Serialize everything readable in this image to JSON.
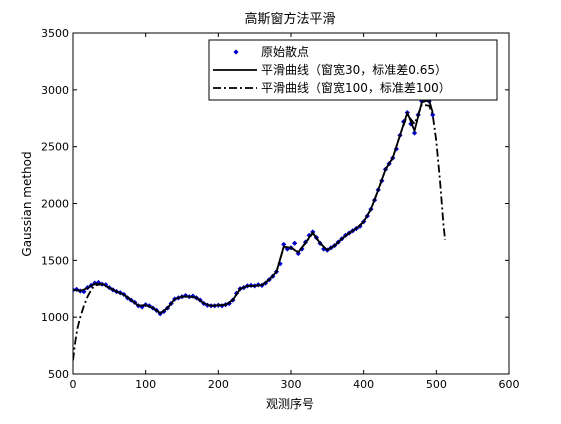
{
  "chart_data": {
    "type": "line",
    "title": "高斯窗方法平滑",
    "xlabel": "观测序号",
    "ylabel": "Gaussian method",
    "xlim": [
      0,
      600
    ],
    "ylim": [
      500,
      3500
    ],
    "x_ticks": [
      0,
      100,
      200,
      300,
      400,
      500,
      600
    ],
    "y_ticks": [
      500,
      1000,
      1500,
      2000,
      2500,
      3000,
      3500
    ],
    "grid": false,
    "legend": "top-right",
    "series": [
      {
        "name": "原始散点",
        "style": "scatter",
        "color": "#0000cc",
        "points": [
          [
            0,
            1240
          ],
          [
            5,
            1245
          ],
          [
            10,
            1230
          ],
          [
            15,
            1225
          ],
          [
            20,
            1260
          ],
          [
            25,
            1280
          ],
          [
            30,
            1300
          ],
          [
            35,
            1305
          ],
          [
            40,
            1290
          ],
          [
            45,
            1285
          ],
          [
            50,
            1260
          ],
          [
            55,
            1240
          ],
          [
            60,
            1225
          ],
          [
            65,
            1215
          ],
          [
            70,
            1200
          ],
          [
            75,
            1170
          ],
          [
            80,
            1150
          ],
          [
            85,
            1130
          ],
          [
            90,
            1100
          ],
          [
            95,
            1090
          ],
          [
            100,
            1110
          ],
          [
            105,
            1100
          ],
          [
            110,
            1080
          ],
          [
            115,
            1060
          ],
          [
            120,
            1030
          ],
          [
            125,
            1050
          ],
          [
            130,
            1080
          ],
          [
            135,
            1120
          ],
          [
            140,
            1160
          ],
          [
            145,
            1170
          ],
          [
            150,
            1180
          ],
          [
            155,
            1190
          ],
          [
            160,
            1180
          ],
          [
            165,
            1185
          ],
          [
            170,
            1170
          ],
          [
            175,
            1150
          ],
          [
            180,
            1120
          ],
          [
            185,
            1105
          ],
          [
            190,
            1100
          ],
          [
            195,
            1100
          ],
          [
            200,
            1105
          ],
          [
            205,
            1100
          ],
          [
            210,
            1110
          ],
          [
            215,
            1120
          ],
          [
            220,
            1150
          ],
          [
            225,
            1210
          ],
          [
            230,
            1250
          ],
          [
            235,
            1260
          ],
          [
            240,
            1275
          ],
          [
            245,
            1280
          ],
          [
            250,
            1275
          ],
          [
            255,
            1285
          ],
          [
            260,
            1280
          ],
          [
            265,
            1300
          ],
          [
            270,
            1330
          ],
          [
            275,
            1360
          ],
          [
            280,
            1400
          ],
          [
            285,
            1470
          ],
          [
            290,
            1640
          ],
          [
            295,
            1600
          ],
          [
            300,
            1610
          ],
          [
            305,
            1650
          ],
          [
            310,
            1560
          ],
          [
            315,
            1600
          ],
          [
            320,
            1660
          ],
          [
            325,
            1720
          ],
          [
            330,
            1750
          ],
          [
            335,
            1700
          ],
          [
            340,
            1650
          ],
          [
            345,
            1600
          ],
          [
            350,
            1590
          ],
          [
            355,
            1610
          ],
          [
            360,
            1630
          ],
          [
            365,
            1660
          ],
          [
            370,
            1690
          ],
          [
            375,
            1720
          ],
          [
            380,
            1740
          ],
          [
            385,
            1760
          ],
          [
            390,
            1780
          ],
          [
            395,
            1800
          ],
          [
            400,
            1840
          ],
          [
            405,
            1890
          ],
          [
            410,
            1950
          ],
          [
            415,
            2030
          ],
          [
            420,
            2120
          ],
          [
            425,
            2200
          ],
          [
            430,
            2300
          ],
          [
            435,
            2350
          ],
          [
            440,
            2400
          ],
          [
            445,
            2480
          ],
          [
            450,
            2600
          ],
          [
            455,
            2720
          ],
          [
            460,
            2800
          ],
          [
            465,
            2700
          ],
          [
            470,
            2620
          ],
          [
            475,
            2780
          ],
          [
            480,
            2900
          ],
          [
            485,
            2950
          ],
          [
            490,
            2900
          ],
          [
            495,
            2780
          ]
        ]
      },
      {
        "name": "平滑曲线（窗宽30，标准差0.65）",
        "style": "solid",
        "color": "#000000",
        "points": [
          [
            0,
            1240
          ],
          [
            10,
            1232
          ],
          [
            20,
            1255
          ],
          [
            30,
            1295
          ],
          [
            40,
            1292
          ],
          [
            50,
            1258
          ],
          [
            60,
            1225
          ],
          [
            70,
            1198
          ],
          [
            80,
            1150
          ],
          [
            90,
            1102
          ],
          [
            100,
            1105
          ],
          [
            110,
            1082
          ],
          [
            120,
            1035
          ],
          [
            130,
            1080
          ],
          [
            140,
            1158
          ],
          [
            150,
            1180
          ],
          [
            160,
            1182
          ],
          [
            170,
            1170
          ],
          [
            180,
            1122
          ],
          [
            190,
            1100
          ],
          [
            200,
            1104
          ],
          [
            210,
            1110
          ],
          [
            220,
            1152
          ],
          [
            230,
            1248
          ],
          [
            240,
            1274
          ],
          [
            250,
            1276
          ],
          [
            260,
            1282
          ],
          [
            270,
            1330
          ],
          [
            280,
            1400
          ],
          [
            290,
            1620
          ],
          [
            300,
            1610
          ],
          [
            310,
            1570
          ],
          [
            320,
            1655
          ],
          [
            330,
            1745
          ],
          [
            340,
            1650
          ],
          [
            350,
            1590
          ],
          [
            360,
            1630
          ],
          [
            370,
            1690
          ],
          [
            380,
            1740
          ],
          [
            390,
            1780
          ],
          [
            400,
            1840
          ],
          [
            410,
            1950
          ],
          [
            420,
            2120
          ],
          [
            430,
            2300
          ],
          [
            440,
            2400
          ],
          [
            450,
            2600
          ],
          [
            460,
            2800
          ],
          [
            470,
            2640
          ],
          [
            480,
            2890
          ],
          [
            490,
            2910
          ],
          [
            495,
            2800
          ]
        ]
      },
      {
        "name": "平滑曲线（窗宽100，标准差100）",
        "style": "dash-dot",
        "color": "#000000",
        "points": [
          [
            0,
            620
          ],
          [
            3,
            780
          ],
          [
            6,
            900
          ],
          [
            10,
            1000
          ],
          [
            15,
            1100
          ],
          [
            20,
            1180
          ],
          [
            25,
            1240
          ],
          [
            30,
            1280
          ],
          [
            40,
            1290
          ],
          [
            50,
            1258
          ],
          [
            60,
            1225
          ],
          [
            70,
            1198
          ],
          [
            80,
            1150
          ],
          [
            90,
            1102
          ],
          [
            100,
            1105
          ],
          [
            110,
            1082
          ],
          [
            120,
            1035
          ],
          [
            130,
            1080
          ],
          [
            140,
            1158
          ],
          [
            150,
            1180
          ],
          [
            160,
            1182
          ],
          [
            170,
            1170
          ],
          [
            180,
            1122
          ],
          [
            190,
            1100
          ],
          [
            200,
            1104
          ],
          [
            210,
            1110
          ],
          [
            220,
            1152
          ],
          [
            230,
            1248
          ],
          [
            240,
            1274
          ],
          [
            250,
            1276
          ],
          [
            260,
            1282
          ],
          [
            270,
            1330
          ],
          [
            280,
            1400
          ],
          [
            290,
            1615
          ],
          [
            300,
            1610
          ],
          [
            310,
            1575
          ],
          [
            320,
            1650
          ],
          [
            330,
            1740
          ],
          [
            340,
            1650
          ],
          [
            350,
            1592
          ],
          [
            360,
            1630
          ],
          [
            370,
            1690
          ],
          [
            380,
            1740
          ],
          [
            390,
            1780
          ],
          [
            400,
            1840
          ],
          [
            410,
            1950
          ],
          [
            420,
            2115
          ],
          [
            430,
            2300
          ],
          [
            440,
            2400
          ],
          [
            450,
            2600
          ],
          [
            460,
            2780
          ],
          [
            470,
            2700
          ],
          [
            480,
            2870
          ],
          [
            490,
            2860
          ],
          [
            495,
            2780
          ],
          [
            500,
            2550
          ],
          [
            505,
            2200
          ],
          [
            510,
            1800
          ],
          [
            512,
            1680
          ]
        ]
      }
    ]
  }
}
